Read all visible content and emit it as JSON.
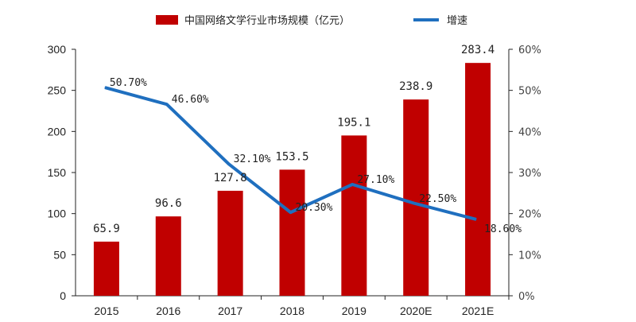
{
  "chart_data": {
    "type": "bar",
    "categories": [
      "2015",
      "2016",
      "2017",
      "2018",
      "2019",
      "2020E",
      "2021E"
    ],
    "series": [
      {
        "name": "中国网络文学行业市场规模（亿元）",
        "type": "bar",
        "axis": "left",
        "color": "#c00000",
        "values": [
          65.9,
          96.6,
          127.8,
          153.5,
          195.1,
          238.9,
          283.4
        ],
        "labels": [
          "65.9",
          "96.6",
          "127.8",
          "153.5",
          "195.1",
          "238.9",
          "283.4"
        ]
      },
      {
        "name": "增速",
        "type": "line",
        "axis": "right",
        "color": "#1f6fbf",
        "values": [
          50.7,
          46.6,
          32.1,
          20.3,
          27.1,
          22.5,
          18.6
        ],
        "labels": [
          "50.70%",
          "46.60%",
          "32.10%",
          "20.30%",
          "27.10%",
          "22.50%",
          "18.60%"
        ]
      }
    ],
    "y_left": {
      "min": 0,
      "max": 300,
      "ticks": [
        "0",
        "50",
        "100",
        "150",
        "200",
        "250",
        "300"
      ]
    },
    "y_right": {
      "min": 0,
      "max": 60,
      "ticks": [
        "0%",
        "10%",
        "20%",
        "30%",
        "40%",
        "50%",
        "60%"
      ]
    },
    "grid": false,
    "legend_position": "top"
  }
}
